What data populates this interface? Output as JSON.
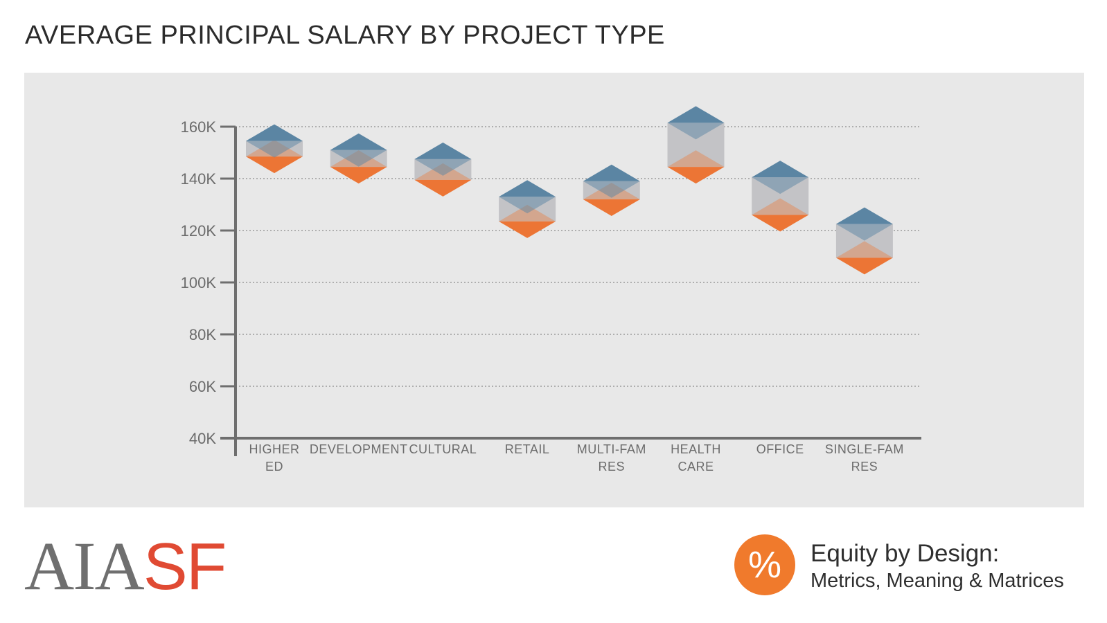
{
  "title": "AVERAGE PRINCIPAL SALARY BY PROJECT TYPE",
  "colors": {
    "panel": "#e8e8e8",
    "upper": "#5b85a3",
    "lower": "#ec7535",
    "band": "#c3c3c6",
    "axis": "#6e6e6e",
    "grid": "#9a9a9a"
  },
  "chart_data": {
    "type": "range",
    "title": "AVERAGE PRINCIPAL SALARY BY PROJECT TYPE",
    "xlabel": "",
    "ylabel": "",
    "ylim": [
      40000,
      160000
    ],
    "yticks": [
      {
        "value": 160000,
        "label": "160K"
      },
      {
        "value": 140000,
        "label": "140K"
      },
      {
        "value": 120000,
        "label": "120K"
      },
      {
        "value": 100000,
        "label": "100K"
      },
      {
        "value": 80000,
        "label": "80K"
      },
      {
        "value": 60000,
        "label": "60K"
      },
      {
        "value": 40000,
        "label": "40K"
      }
    ],
    "grid": true,
    "series": [
      {
        "name": "Upper",
        "color": "#5b85a3"
      },
      {
        "name": "Lower",
        "color": "#ec7535"
      }
    ],
    "categories": [
      {
        "label": [
          "HIGHER",
          "ED"
        ],
        "upper": 154500,
        "lower": 148500
      },
      {
        "label": [
          "DEVELOPMENT"
        ],
        "upper": 151000,
        "lower": 144500
      },
      {
        "label": [
          "CULTURAL"
        ],
        "upper": 147500,
        "lower": 139500
      },
      {
        "label": [
          "RETAIL"
        ],
        "upper": 133000,
        "lower": 123500
      },
      {
        "label": [
          "MULTI-FAM",
          "RES"
        ],
        "upper": 139000,
        "lower": 132000
      },
      {
        "label": [
          "HEALTH",
          "CARE"
        ],
        "upper": 161500,
        "lower": 144500
      },
      {
        "label": [
          "OFFICE"
        ],
        "upper": 140500,
        "lower": 126000
      },
      {
        "label": [
          "SINGLE-FAM",
          "RES"
        ],
        "upper": 122500,
        "lower": 109500
      }
    ]
  },
  "footer": {
    "logo_left_gray": "AIA",
    "logo_left_red": "SF",
    "badge_symbol": "%",
    "right_line1": "Equity by Design:",
    "right_line2": "Metrics, Meaning & Matrices"
  }
}
